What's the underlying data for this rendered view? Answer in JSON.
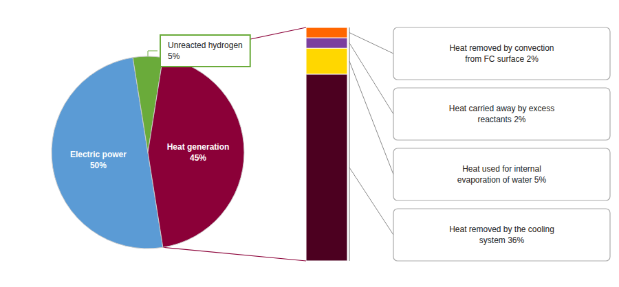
{
  "chart_data": [
    {
      "type": "pie",
      "categories": [
        "Electric power",
        "Unreacted hydrogen",
        "Heat generation"
      ],
      "values": [
        50,
        5,
        45
      ],
      "value_labels": [
        "50%",
        "5%",
        "45%"
      ],
      "colors": [
        "#5B9BD5",
        "#6AAB3A",
        "#8B0038"
      ],
      "data_labels": true
    },
    {
      "type": "bar",
      "stacked": true,
      "categories": [
        null
      ],
      "series": [
        {
          "name": "Heat removed by convection\nfrom FC surface 2%",
          "color": "#FF6600",
          "values": [
            2
          ]
        },
        {
          "name": "Heat carried away by excess\nreactants 2%",
          "color": "#7B3F9E",
          "values": [
            2
          ]
        },
        {
          "name": "Heat used for internal\nevaporation of water 5%",
          "color": "#FFD700",
          "values": [
            5
          ]
        },
        {
          "name": "Heat removed by the cooling\nsystem 36%",
          "color": "#4C0020",
          "values": [
            36
          ]
        }
      ],
      "ylim": [
        0,
        45
      ],
      "tick_labels": false
    }
  ]
}
